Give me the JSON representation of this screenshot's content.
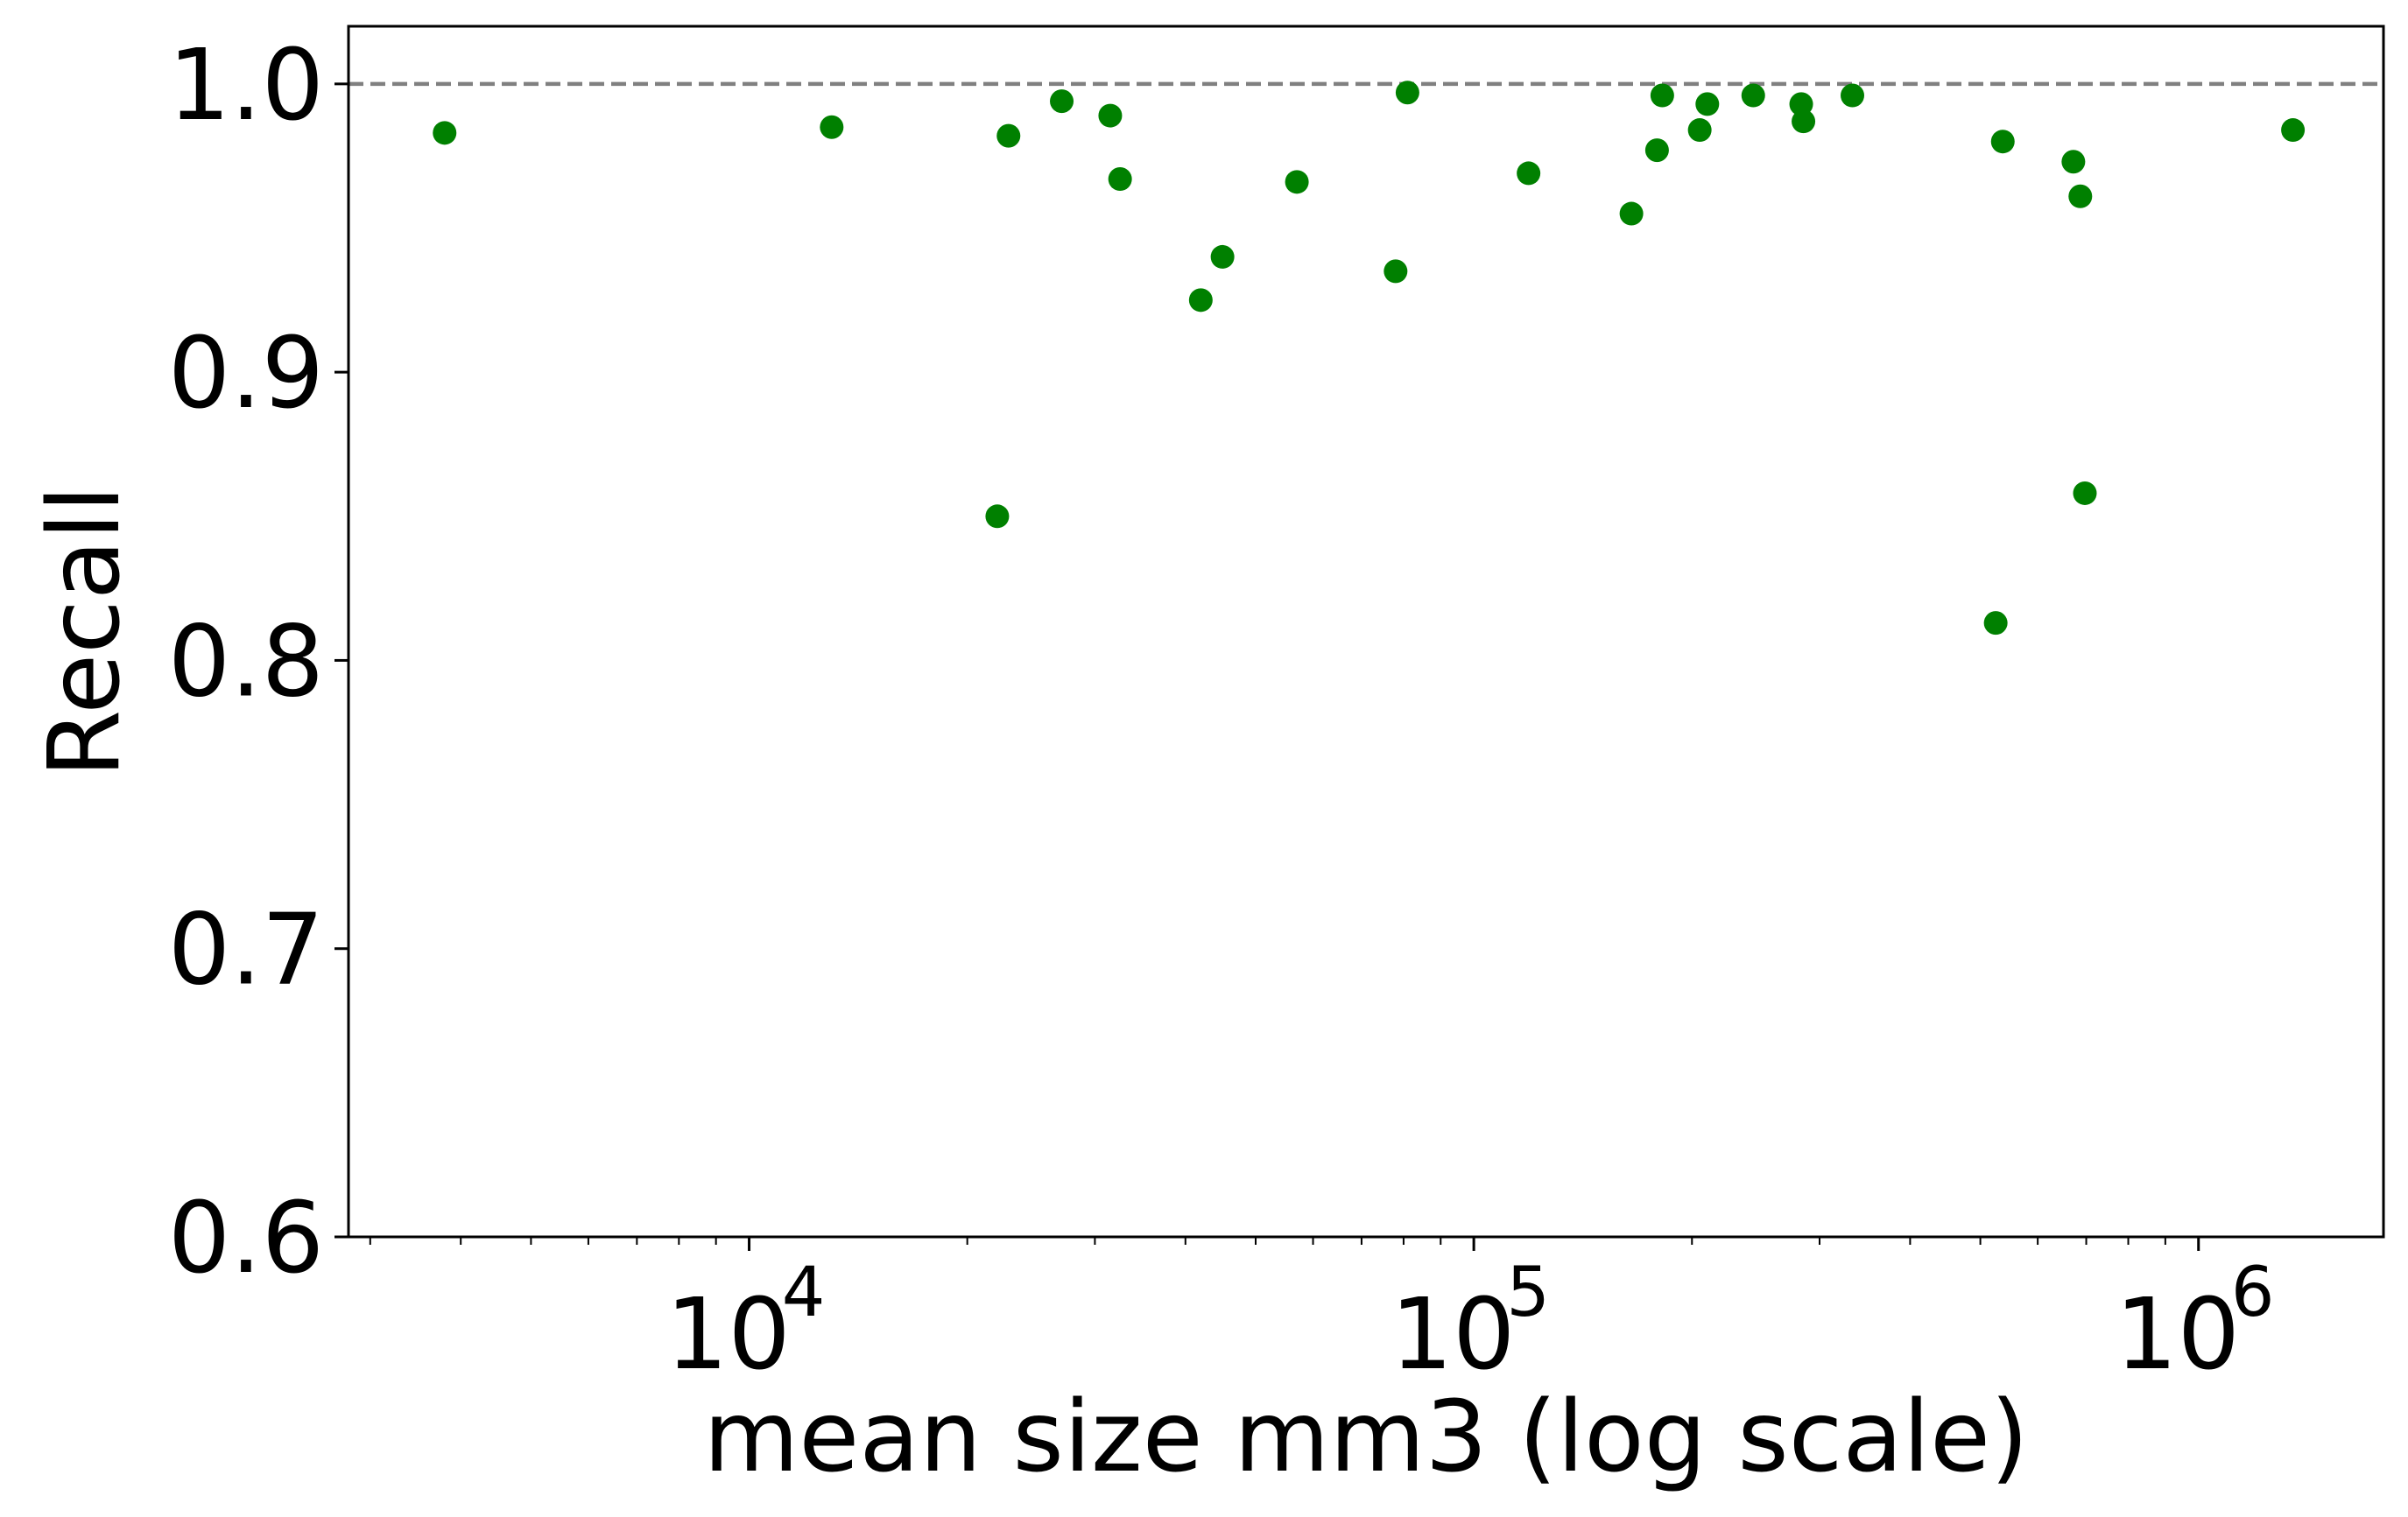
{
  "chart_data": {
    "type": "scatter",
    "xlabel": "mean size mm3 (log scale)",
    "ylabel": "Recall",
    "xscale": "log",
    "xlim": [
      2800,
      1800000
    ],
    "ylim": [
      0.6,
      1.02
    ],
    "grid": false,
    "legend": "none",
    "y_ticks": [
      "0.6",
      "0.7",
      "0.8",
      "0.9",
      "1.0"
    ],
    "x_ticks": [
      {
        "base": "10",
        "exponent": "4",
        "value": 10000
      },
      {
        "base": "10",
        "exponent": "5",
        "value": 100000
      },
      {
        "base": "10",
        "exponent": "6",
        "value": 1000000
      }
    ],
    "reference_line": {
      "y": 1.0,
      "style": "dashed",
      "color": "#808080"
    },
    "marker_color": "#008000",
    "series": [
      {
        "points": [
          {
            "x": 3800,
            "y": 0.983
          },
          {
            "x": 13000,
            "y": 0.985
          },
          {
            "x": 22000,
            "y": 0.85
          },
          {
            "x": 22800,
            "y": 0.982
          },
          {
            "x": 27000,
            "y": 0.994
          },
          {
            "x": 31500,
            "y": 0.989
          },
          {
            "x": 32500,
            "y": 0.967
          },
          {
            "x": 42000,
            "y": 0.925
          },
          {
            "x": 45000,
            "y": 0.94
          },
          {
            "x": 57000,
            "y": 0.966
          },
          {
            "x": 78000,
            "y": 0.935
          },
          {
            "x": 81000,
            "y": 0.997
          },
          {
            "x": 119000,
            "y": 0.969
          },
          {
            "x": 165000,
            "y": 0.955
          },
          {
            "x": 179000,
            "y": 0.977
          },
          {
            "x": 182000,
            "y": 0.996
          },
          {
            "x": 205000,
            "y": 0.984
          },
          {
            "x": 210000,
            "y": 0.993
          },
          {
            "x": 243000,
            "y": 0.996
          },
          {
            "x": 283000,
            "y": 0.993
          },
          {
            "x": 285000,
            "y": 0.987
          },
          {
            "x": 333000,
            "y": 0.996
          },
          {
            "x": 525000,
            "y": 0.813
          },
          {
            "x": 537000,
            "y": 0.98
          },
          {
            "x": 672000,
            "y": 0.973
          },
          {
            "x": 687000,
            "y": 0.961
          },
          {
            "x": 697000,
            "y": 0.858
          },
          {
            "x": 1350000,
            "y": 0.984
          }
        ]
      }
    ]
  }
}
